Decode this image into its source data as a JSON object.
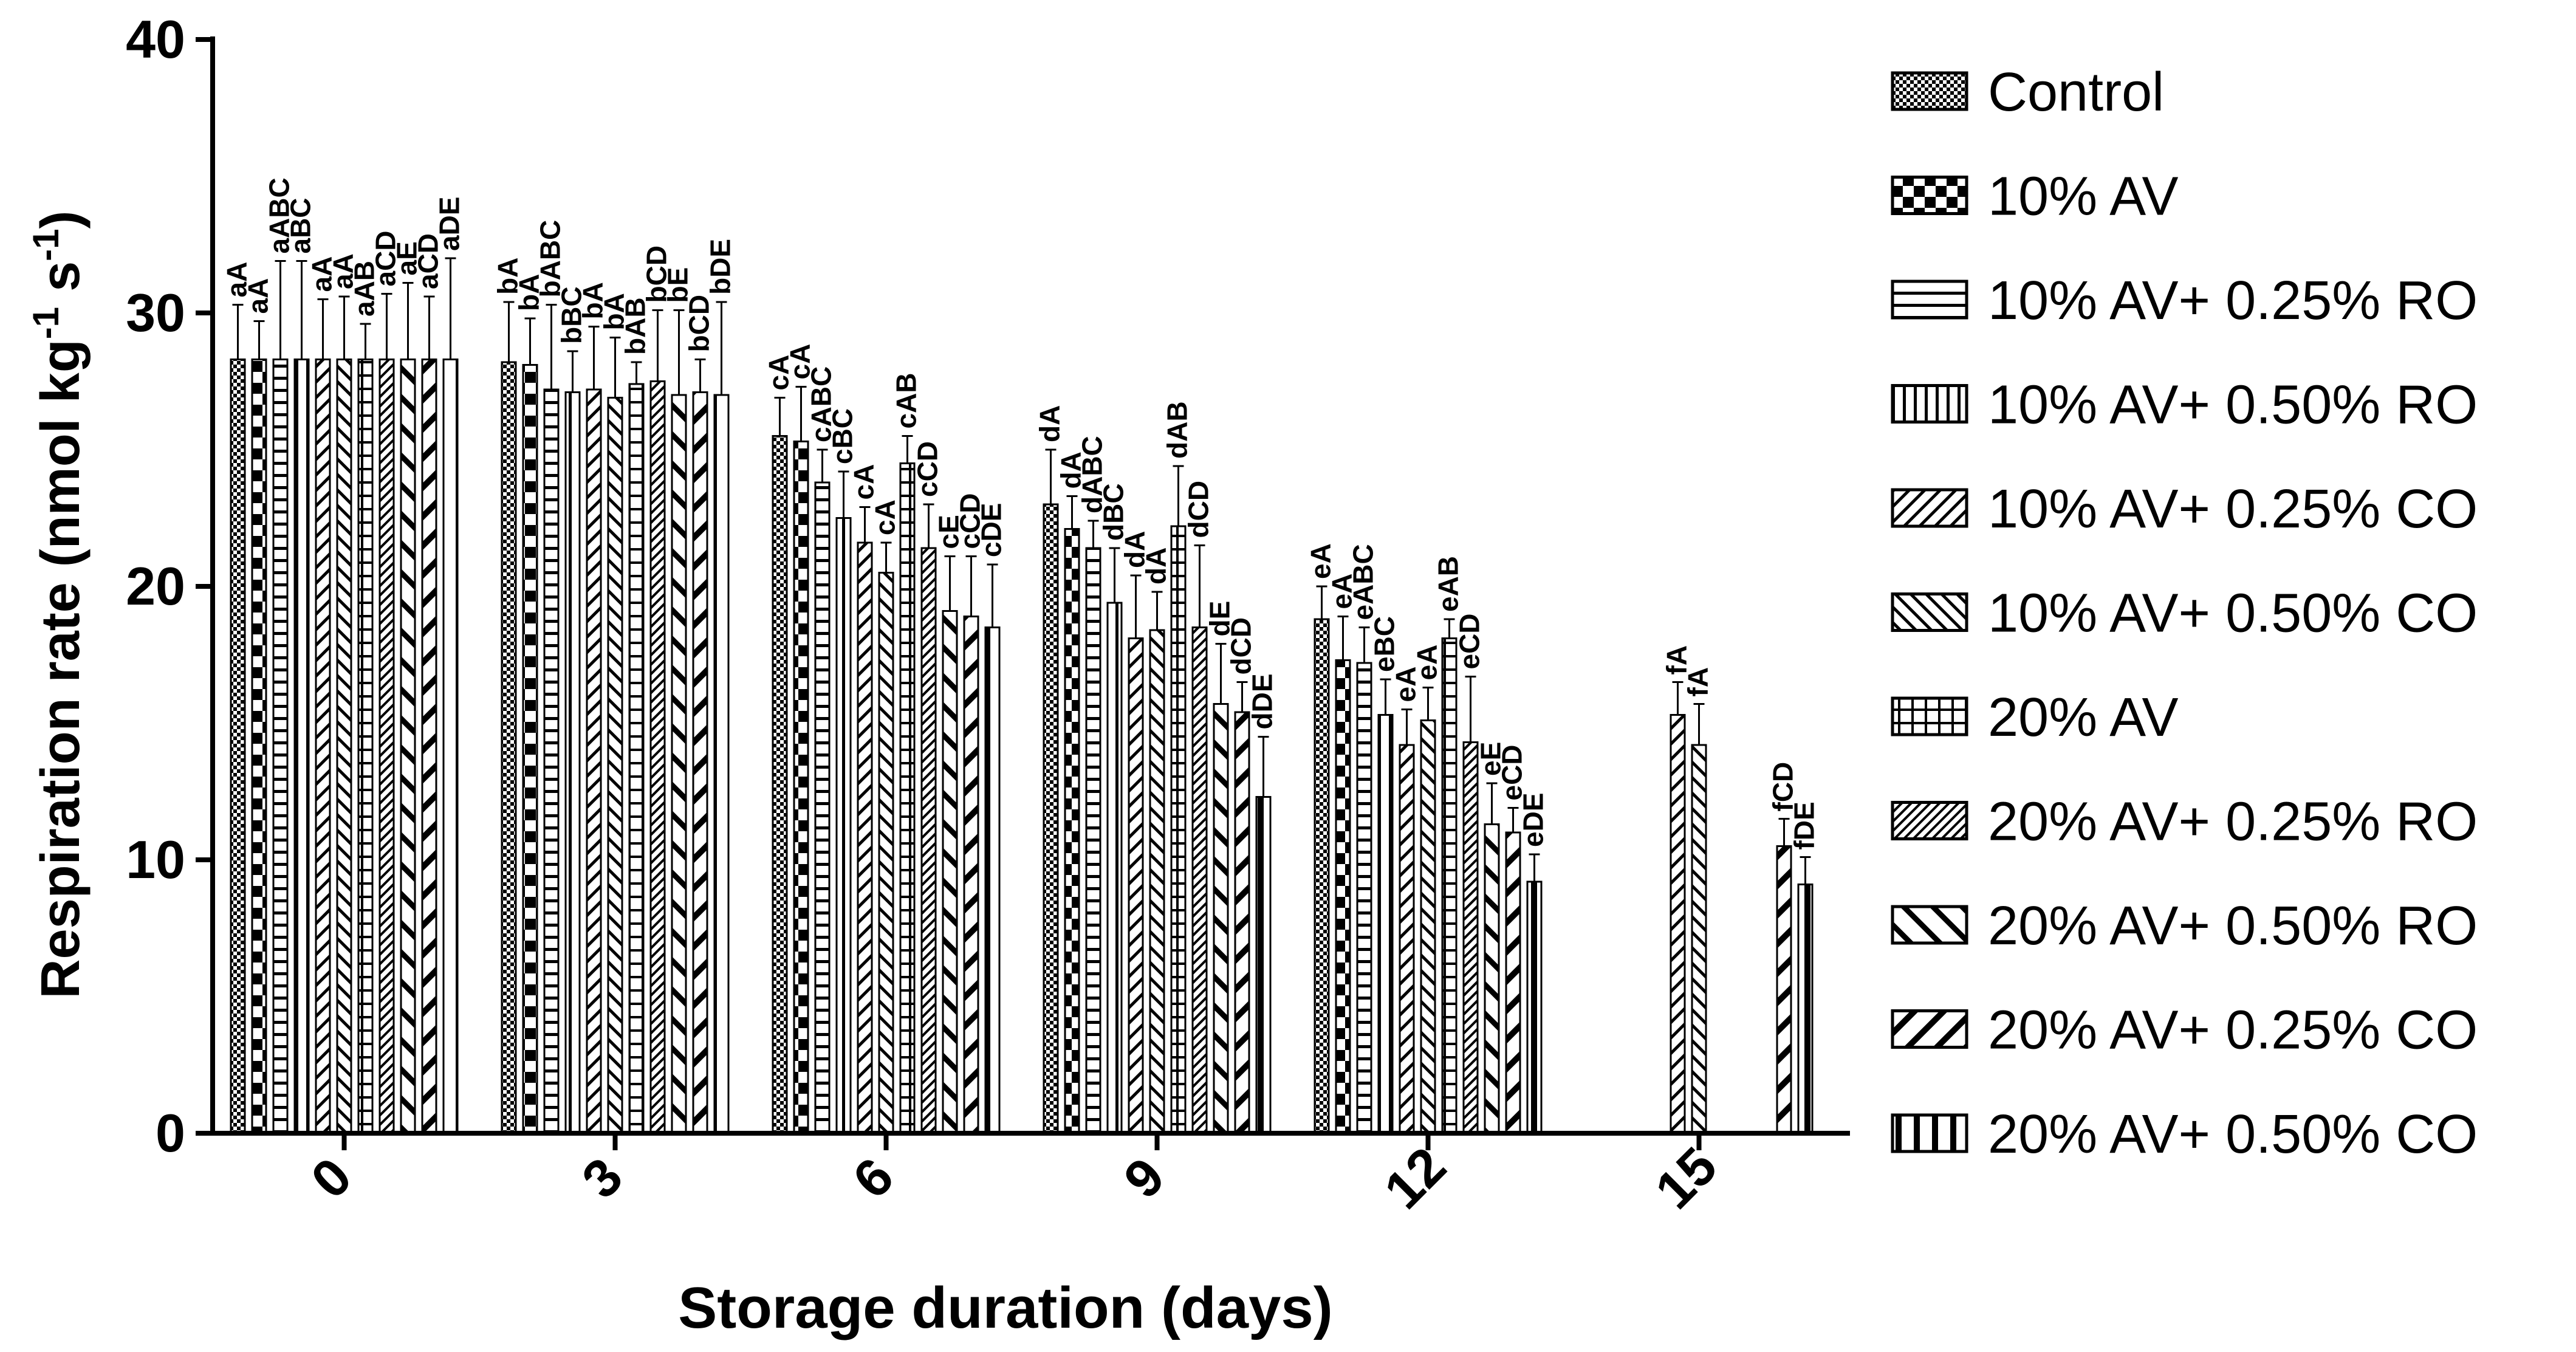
{
  "chart_data": {
    "type": "bar",
    "title": "",
    "xlabel": "Storage duration (days)",
    "ylabel": "Respiration rate (nmol kg",
    "ylabel_sup1": "-1",
    "ylabel_mid": " s",
    "ylabel_sup2": "-1",
    "ylabel_end": ")",
    "ylim": [
      0,
      40
    ],
    "yticks": [
      "0",
      "10",
      "20",
      "30",
      "40"
    ],
    "categories": [
      "0",
      "3",
      "6",
      "9",
      "12",
      "15"
    ],
    "legend_position": "right",
    "series": [
      {
        "name": "Control",
        "pattern": "dots",
        "values": [
          28.3,
          28.2,
          25.5,
          23.0,
          18.8,
          null
        ],
        "errors": [
          2.0,
          2.2,
          1.4,
          2.0,
          1.2,
          null
        ],
        "labels": [
          "aA",
          "bA",
          "cA",
          "dA",
          "eA",
          ""
        ]
      },
      {
        "name": "10% AV",
        "pattern": "checker",
        "values": [
          28.3,
          28.1,
          25.3,
          22.1,
          17.3,
          null
        ],
        "errors": [
          1.4,
          1.7,
          2.0,
          1.2,
          1.6,
          null
        ],
        "labels": [
          "aA",
          "bA",
          "cA",
          "dA",
          "eA",
          ""
        ]
      },
      {
        "name": "10% AV+ 0.25% RO",
        "pattern": "hlines",
        "values": [
          28.3,
          27.2,
          23.8,
          21.4,
          17.2,
          null
        ],
        "errors": [
          3.6,
          3.1,
          1.2,
          1.0,
          1.3,
          null
        ],
        "labels": [
          "aABC",
          "bABC",
          "cABC",
          "dABC",
          "eABC",
          ""
        ]
      },
      {
        "name": "10% AV+ 0.50% RO",
        "pattern": "vlines",
        "values": [
          28.3,
          27.1,
          22.5,
          19.4,
          15.3,
          null
        ],
        "errors": [
          3.6,
          1.5,
          1.7,
          2.0,
          1.3,
          null
        ],
        "labels": [
          "aBC",
          "bBC",
          "cBC",
          "dBC",
          "eBC",
          ""
        ]
      },
      {
        "name": "10% AV+ 0.25% CO",
        "pattern": "fdiag",
        "values": [
          28.3,
          27.2,
          21.6,
          18.1,
          14.2,
          15.3
        ],
        "errors": [
          2.2,
          2.3,
          1.3,
          2.3,
          1.3,
          1.2
        ],
        "labels": [
          "aA",
          "bA",
          "cA",
          "dA",
          "eA",
          "fA"
        ]
      },
      {
        "name": "10% AV+ 0.50% CO",
        "pattern": "bdiag",
        "values": [
          28.3,
          26.9,
          20.5,
          18.4,
          15.1,
          14.2
        ],
        "errors": [
          2.3,
          2.2,
          1.1,
          1.4,
          1.2,
          1.5
        ],
        "labels": [
          "aA",
          "bA",
          "cA",
          "dA",
          "eA",
          "fA"
        ]
      },
      {
        "name": "20% AV",
        "pattern": "grid",
        "values": [
          28.3,
          27.4,
          24.5,
          22.2,
          18.1,
          null
        ],
        "errors": [
          1.3,
          0.8,
          1.0,
          2.2,
          0.7,
          null
        ],
        "labels": [
          "aAB",
          "bAB",
          "cAB",
          "dAB",
          "eAB",
          ""
        ]
      },
      {
        "name": "20% AV+ 0.25% RO",
        "pattern": "smallfdiag",
        "values": [
          28.3,
          27.5,
          21.4,
          18.5,
          14.3,
          null
        ],
        "errors": [
          2.4,
          2.6,
          1.6,
          3.0,
          2.4,
          null
        ],
        "labels": [
          "aCD",
          "bCD",
          "cCD",
          "dCD",
          "eCD",
          ""
        ]
      },
      {
        "name": "20% AV+ 0.50% RO",
        "pattern": "widebdiag",
        "values": [
          28.3,
          27.0,
          19.1,
          15.7,
          11.3,
          null
        ],
        "errors": [
          2.8,
          3.1,
          2.0,
          2.2,
          1.5,
          null
        ],
        "labels": [
          "aE",
          "bE",
          "cE",
          "dE",
          "eE",
          ""
        ]
      },
      {
        "name": "20% AV+ 0.25% CO",
        "pattern": "widefdiag",
        "values": [
          28.3,
          27.1,
          18.9,
          15.4,
          11.0,
          10.5
        ],
        "errors": [
          2.3,
          1.2,
          2.2,
          1.1,
          0.9,
          1.0
        ],
        "labels": [
          "aCD",
          "bCD",
          "cCD",
          "dCD",
          "eCD",
          "fCD"
        ]
      },
      {
        "name": "20% AV+ 0.50% CO",
        "pattern": "widevlines",
        "values": [
          28.3,
          27.0,
          18.5,
          12.3,
          9.2,
          9.1
        ],
        "errors": [
          3.7,
          3.4,
          2.3,
          2.2,
          1.0,
          1.0
        ],
        "labels": [
          "aDE",
          "bDE",
          "cDE",
          "dDE",
          "eDE",
          "fDE"
        ]
      }
    ]
  }
}
